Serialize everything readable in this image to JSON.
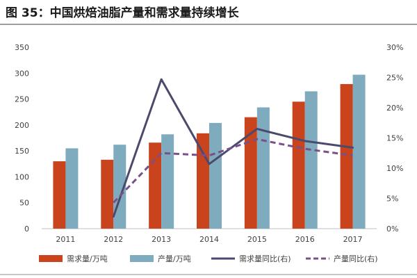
{
  "title": "图 35：中国烘焙油脂产量和需求量持续增长",
  "colors": {
    "demand_bar": "#c9431c",
    "production_bar": "#7eabbe",
    "demand_yoy": "#4b4a6d",
    "production_yoy": "#7a4f8a"
  },
  "chart_data": {
    "type": "bar",
    "title": "",
    "categories": [
      "2011",
      "2012",
      "2013",
      "2014",
      "2015",
      "2016",
      "2017"
    ],
    "series": [
      {
        "name": "需求量/万吨",
        "type": "bar",
        "axis": "left",
        "values": [
          130,
          133,
          166,
          184,
          215,
          245,
          279
        ]
      },
      {
        "name": "产量/万吨",
        "type": "bar",
        "axis": "left",
        "values": [
          155,
          162,
          182,
          204,
          234,
          265,
          297
        ]
      },
      {
        "name": "需求量同比(右)",
        "type": "line",
        "style": "solid",
        "axis": "right",
        "values": [
          null,
          2,
          24.7,
          10.7,
          16.5,
          14.5,
          13.4
        ]
      },
      {
        "name": "产量同比(右)",
        "type": "line",
        "style": "dashed",
        "axis": "right",
        "values": [
          null,
          4.3,
          12.5,
          12.1,
          14.8,
          13.2,
          12.1
        ]
      }
    ],
    "y_left": {
      "min": 0,
      "max": 350,
      "ticks": [
        "0",
        "50",
        "100",
        "150",
        "200",
        "250",
        "300",
        "350"
      ]
    },
    "y_right": {
      "min": 0,
      "max": 30,
      "ticks": [
        "0%",
        "5%",
        "10%",
        "15%",
        "20%",
        "25%",
        "30%"
      ]
    },
    "grid": false,
    "legend": "bottom"
  }
}
